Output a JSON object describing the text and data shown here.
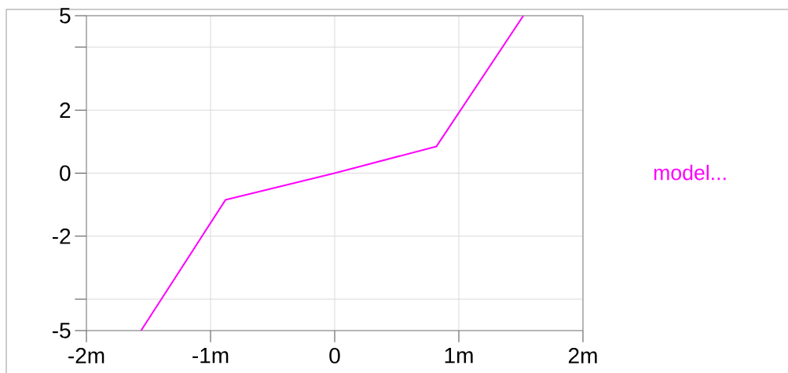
{
  "chart_data": {
    "type": "line",
    "x": [
      -1.56,
      -0.88,
      0,
      0.82,
      1.52
    ],
    "series": [
      {
        "name": "model...",
        "color": "#ff00ff",
        "values": [
          -5,
          -0.85,
          0,
          0.85,
          5
        ]
      }
    ],
    "xlim": [
      -2,
      2
    ],
    "xticks": [
      {
        "value": -2,
        "label": "-2m"
      },
      {
        "value": -1,
        "label": "-1m"
      },
      0,
      {
        "value": 1,
        "label": "1m"
      },
      {
        "value": 2,
        "label": "2m"
      }
    ],
    "ylim": [
      -5,
      5
    ],
    "yticks": [
      {
        "value": -5,
        "label": "-5"
      },
      {
        "value": -4,
        "label": null
      },
      -2,
      0,
      2,
      {
        "value": 4,
        "label": null
      },
      {
        "value": 5,
        "label": "5"
      }
    ],
    "grid": true,
    "legend": "right",
    "marker": "none",
    "line_style": "solid"
  }
}
